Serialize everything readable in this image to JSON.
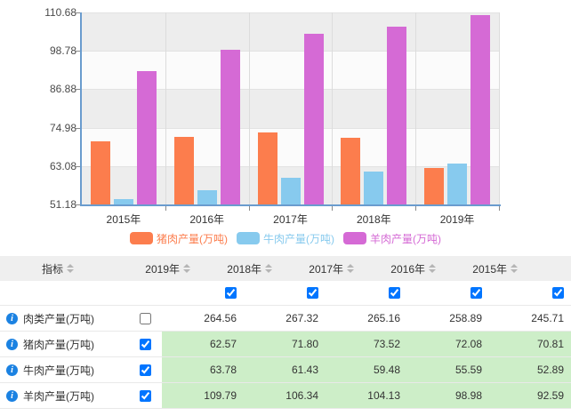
{
  "chart_data": {
    "type": "bar",
    "title": "",
    "categories": [
      "2015年",
      "2016年",
      "2017年",
      "2018年",
      "2019年"
    ],
    "series": [
      {
        "name": "猪肉产量(万吨)",
        "color": "#fc7d4d",
        "values": [
          70.81,
          72.08,
          73.52,
          71.8,
          62.57
        ]
      },
      {
        "name": "牛肉产量(万吨)",
        "color": "#87caee",
        "values": [
          52.89,
          55.59,
          59.48,
          61.43,
          63.78
        ]
      },
      {
        "name": "羊肉产量(万吨)",
        "color": "#d56ad5",
        "values": [
          92.59,
          98.98,
          104.13,
          106.34,
          109.79
        ]
      }
    ],
    "y_ticks": [
      "110.68",
      "98.78",
      "86.88",
      "74.98",
      "63.08",
      "51.18"
    ],
    "ylim": [
      51.18,
      110.68
    ],
    "legend_position": "bottom",
    "grid": "horizontal-bands",
    "band_colors": [
      "#ededed",
      "#fbfbfb"
    ],
    "axis_color": "#6a9cce"
  },
  "icons": {
    "info_glyph": "i"
  },
  "table": {
    "header": {
      "metric_label": "指标",
      "year_columns": [
        "2019年",
        "2018年",
        "2017年",
        "2016年",
        "2015年"
      ],
      "column_checkboxes": [
        true,
        true,
        true,
        true,
        true
      ]
    },
    "rows": [
      {
        "label": "肉类产量(万吨)",
        "checked": false,
        "highlight": false,
        "values": [
          "264.56",
          "267.32",
          "265.16",
          "258.89",
          "245.71"
        ]
      },
      {
        "label": "猪肉产量(万吨)",
        "checked": true,
        "highlight": true,
        "values": [
          "62.57",
          "71.80",
          "73.52",
          "72.08",
          "70.81"
        ]
      },
      {
        "label": "牛肉产量(万吨)",
        "checked": true,
        "highlight": true,
        "values": [
          "63.78",
          "61.43",
          "59.48",
          "55.59",
          "52.89"
        ]
      },
      {
        "label": "羊肉产量(万吨)",
        "checked": true,
        "highlight": true,
        "values": [
          "109.79",
          "106.34",
          "104.13",
          "98.98",
          "92.59"
        ]
      }
    ],
    "colors": {
      "highlight_bg": "#cdeec8",
      "header_bg": "#efefef",
      "info_icon": "#1b82e2"
    }
  }
}
